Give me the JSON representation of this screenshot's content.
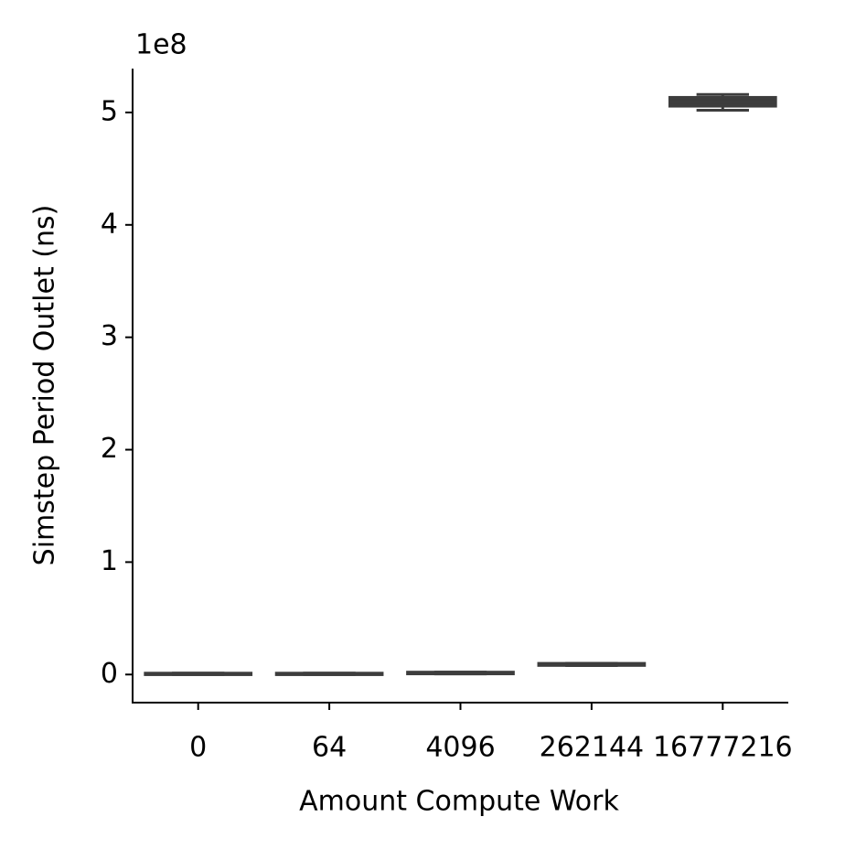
{
  "chart_data": {
    "type": "box",
    "x_label": "Amount Compute Work",
    "y_label": "Simstep Period Outlet (ns)",
    "y_offset_label": "1e8",
    "categories": [
      "0",
      "64",
      "4096",
      "262144",
      "16777216"
    ],
    "boxes": [
      {
        "min": 0.0,
        "q1": 0.003,
        "median": 0.005,
        "q3": 0.008,
        "max": 0.012
      },
      {
        "min": 0.0,
        "q1": 0.003,
        "median": 0.005,
        "q3": 0.008,
        "max": 0.012
      },
      {
        "min": 0.005,
        "q1": 0.01,
        "median": 0.013,
        "q3": 0.017,
        "max": 0.022
      },
      {
        "min": 0.08,
        "q1": 0.085,
        "median": 0.09,
        "q3": 0.095,
        "max": 0.1
      },
      {
        "min": 5.02,
        "q1": 5.06,
        "median": 5.09,
        "q3": 5.13,
        "max": 5.16
      }
    ],
    "color": "#3d3d3d",
    "ylim": [
      -0.25,
      5.39
    ],
    "yticks": [
      0,
      1,
      2,
      3,
      4,
      5
    ]
  }
}
